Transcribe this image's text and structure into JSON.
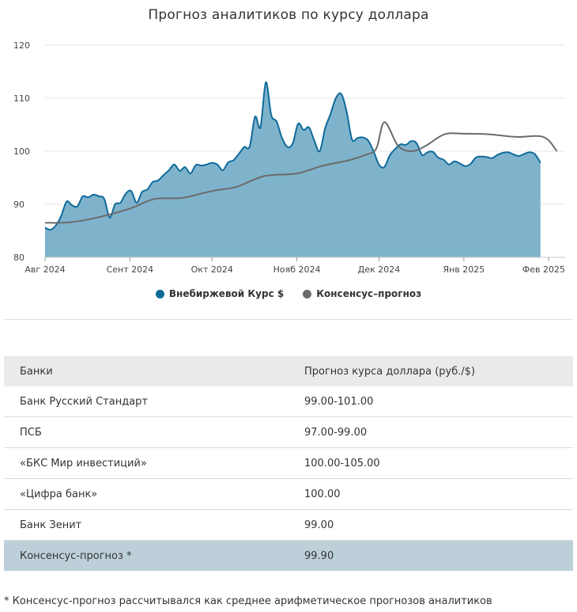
{
  "chart_data": {
    "type": "area",
    "title": "Прогноз аналитиков по курсу доллара",
    "ylim": [
      80,
      120
    ],
    "y_ticks": [
      "80",
      "90",
      "100",
      "110",
      "120"
    ],
    "x_tick_labels": [
      "Авг 2024",
      "Сент 2024",
      "Окт 2024",
      "Нояб 2024",
      "Дек 2024",
      "Янв 2025",
      "Фев 2025"
    ],
    "x_tick_dates": [
      "2024-08-01",
      "2024-09-01",
      "2024-10-01",
      "2024-11-01",
      "2024-12-01",
      "2025-01-01",
      "2025-02-01"
    ],
    "legend_position": "bottom",
    "grid": true,
    "series": [
      {
        "name": "Внебиржевой Курс $",
        "color": "#0e6a9a",
        "fill": "#7fb3cc",
        "x": [
          "2024-08-01",
          "2024-08-03",
          "2024-08-05",
          "2024-08-07",
          "2024-08-09",
          "2024-08-11",
          "2024-08-13",
          "2024-08-15",
          "2024-08-17",
          "2024-08-19",
          "2024-08-21",
          "2024-08-23",
          "2024-08-25",
          "2024-08-27",
          "2024-08-29",
          "2024-08-31",
          "2024-09-02",
          "2024-09-04",
          "2024-09-06",
          "2024-09-08",
          "2024-09-10",
          "2024-09-12",
          "2024-09-14",
          "2024-09-16",
          "2024-09-18",
          "2024-09-20",
          "2024-09-22",
          "2024-09-24",
          "2024-09-26",
          "2024-09-28",
          "2024-09-30",
          "2024-10-02",
          "2024-10-04",
          "2024-10-06",
          "2024-10-08",
          "2024-10-10",
          "2024-10-12",
          "2024-10-14",
          "2024-10-16",
          "2024-10-18",
          "2024-10-20",
          "2024-10-22",
          "2024-10-24",
          "2024-10-26",
          "2024-10-28",
          "2024-10-30",
          "2024-11-01",
          "2024-11-03",
          "2024-11-05",
          "2024-11-07",
          "2024-11-09",
          "2024-11-11",
          "2024-11-13",
          "2024-11-15",
          "2024-11-17",
          "2024-11-19",
          "2024-11-21",
          "2024-11-23",
          "2024-11-25",
          "2024-11-27",
          "2024-11-29",
          "2024-12-01",
          "2024-12-03",
          "2024-12-05",
          "2024-12-07",
          "2024-12-09",
          "2024-12-11",
          "2024-12-13",
          "2024-12-15",
          "2024-12-17",
          "2024-12-19",
          "2024-12-21",
          "2024-12-23",
          "2024-12-25",
          "2024-12-27",
          "2024-12-29",
          "2024-12-31",
          "2025-01-02",
          "2025-01-04",
          "2025-01-06",
          "2025-01-08",
          "2025-01-10",
          "2025-01-12",
          "2025-01-14",
          "2025-01-16",
          "2025-01-18",
          "2025-01-20",
          "2025-01-22",
          "2025-01-24",
          "2025-01-26",
          "2025-01-28",
          "2025-01-30",
          "2025-02-01"
        ],
        "values": [
          85.6,
          85.2,
          86.0,
          87.8,
          90.5,
          89.8,
          89.6,
          91.5,
          91.3,
          91.8,
          91.5,
          91.0,
          87.5,
          90.0,
          90.3,
          92.0,
          92.5,
          90.3,
          92.3,
          92.8,
          94.2,
          94.5,
          95.5,
          96.4,
          97.5,
          96.3,
          97.0,
          95.8,
          97.4,
          97.3,
          97.5,
          97.8,
          97.5,
          96.4,
          97.9,
          98.3,
          99.5,
          100.8,
          100.9,
          106.5,
          104.5,
          113.0,
          106.8,
          105.6,
          102.5,
          100.8,
          101.5,
          105.2,
          104.0,
          104.5,
          102.0,
          100.0,
          104.3,
          107.0,
          110.0,
          110.8,
          107.5,
          102.2,
          102.5,
          102.6,
          102.0,
          100.0,
          97.5,
          97.0,
          99.2,
          100.4,
          101.3,
          101.2,
          101.9,
          101.5,
          99.3,
          99.8,
          99.9,
          98.8,
          98.4,
          97.5,
          98.1,
          97.7,
          97.2,
          97.6,
          98.8,
          99.0,
          98.9,
          98.7,
          99.3,
          99.7,
          99.8,
          99.4,
          99.1,
          99.5,
          99.8,
          99.4,
          97.8
        ],
        "x_end": "2025-01-29"
      },
      {
        "name": "Консенсус–прогноз",
        "color": "#6b6b6b",
        "x": [
          "2024-08-01",
          "2024-08-10",
          "2024-08-20",
          "2024-09-01",
          "2024-09-10",
          "2024-09-20",
          "2024-10-01",
          "2024-10-10",
          "2024-10-20",
          "2024-11-01",
          "2024-11-10",
          "2024-11-20",
          "2024-11-26",
          "2024-11-30",
          "2024-12-03",
          "2024-12-08",
          "2024-12-13",
          "2024-12-18",
          "2024-12-25",
          "2025-01-01",
          "2025-01-10",
          "2025-01-20",
          "2025-01-30",
          "2025-02-04"
        ],
        "values": [
          86.5,
          86.6,
          87.5,
          89.2,
          91.0,
          91.2,
          92.5,
          93.3,
          95.3,
          95.8,
          97.2,
          98.3,
          99.3,
          100.5,
          105.5,
          101.0,
          100.0,
          101.0,
          103.2,
          103.3,
          103.2,
          102.7,
          102.7,
          100.0
        ]
      }
    ]
  },
  "table": {
    "headers": [
      "Банки",
      "Прогноз курса доллара (руб./$)"
    ],
    "rows": [
      [
        "Банк Русский Стандарт",
        "99.00-101.00"
      ],
      [
        "ПСБ",
        "97.00-99.00"
      ],
      [
        "«БКС Мир инвестиций»",
        "100.00-105.00"
      ],
      [
        "«Цифра банк»",
        "100.00"
      ],
      [
        "Банк Зенит",
        "99.00"
      ]
    ],
    "highlight_row": [
      "Консенсус-прогноз *",
      "99.90"
    ]
  },
  "footnote": "* Консенсус-прогноз рассчитывался как среднее арифметическое прогнозов аналитиков"
}
